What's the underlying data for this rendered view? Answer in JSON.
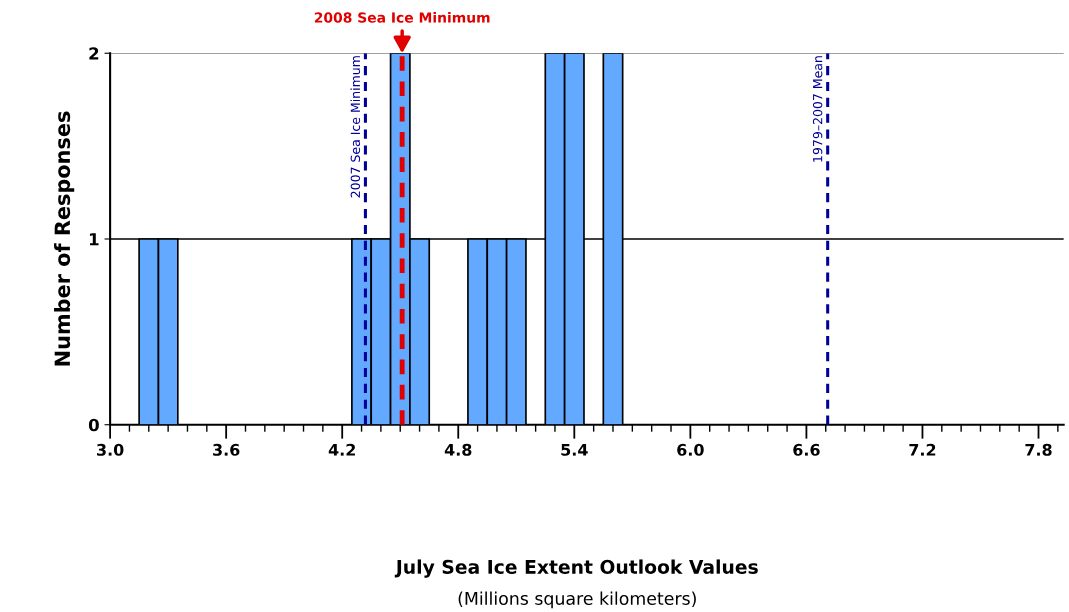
{
  "chart_data": {
    "type": "histogram",
    "ylabel": "Number of Responses",
    "bins": [
      3.15,
      3.25,
      3.35,
      3.45,
      3.55,
      3.65,
      3.75,
      3.85,
      3.95,
      4.05,
      4.15,
      4.25,
      4.35,
      4.45,
      4.55,
      4.65,
      4.75,
      4.85,
      4.95,
      5.05,
      5.15,
      5.25,
      5.35,
      5.45,
      5.55,
      5.65
    ],
    "values": [
      1,
      1,
      0,
      0,
      0,
      0,
      0,
      0,
      0,
      0,
      0,
      1,
      1,
      2,
      1,
      0,
      0,
      1,
      1,
      1,
      0,
      2,
      2,
      0,
      2
    ],
    "color": "#62a9ff",
    "xlim": [
      3.0,
      7.93
    ],
    "xticks": [
      {
        "value": 3.0,
        "label": "3.0"
      },
      {
        "value": 3.1,
        "label": null
      },
      {
        "value": 3.2,
        "label": null
      },
      {
        "value": 3.3,
        "label": null
      },
      {
        "value": 3.4,
        "label": null
      },
      {
        "value": 3.5,
        "label": null
      },
      3.6,
      {
        "value": 3.7,
        "label": null
      },
      {
        "value": 3.8,
        "label": null
      },
      {
        "value": 3.9,
        "label": null
      },
      {
        "value": 4.0,
        "label": null
      },
      {
        "value": 4.1,
        "label": null
      },
      4.2,
      {
        "value": 4.3,
        "label": null
      },
      {
        "value": 4.4,
        "label": null
      },
      {
        "value": 4.5,
        "label": null
      },
      {
        "value": 4.6,
        "label": null
      },
      {
        "value": 4.7,
        "label": null
      },
      4.8,
      {
        "value": 4.9,
        "label": null
      },
      {
        "value": 5.0,
        "label": null
      },
      {
        "value": 5.1,
        "label": null
      },
      {
        "value": 5.2,
        "label": null
      },
      {
        "value": 5.3,
        "label": null
      },
      5.4,
      {
        "value": 5.5,
        "label": null
      },
      {
        "value": 5.6,
        "label": null
      },
      {
        "value": 5.7,
        "label": null
      },
      {
        "value": 5.8,
        "label": null
      },
      {
        "value": 5.9,
        "label": null
      },
      {
        "value": 6.0,
        "label": "6.0"
      },
      {
        "value": 6.1,
        "label": null
      },
      {
        "value": 6.2,
        "label": null
      },
      {
        "value": 6.3,
        "label": null
      },
      {
        "value": 6.4,
        "label": null
      },
      {
        "value": 6.5,
        "label": null
      },
      6.6,
      {
        "value": 6.7,
        "label": null
      },
      {
        "value": 6.8,
        "label": null
      },
      {
        "value": 6.9,
        "label": null
      },
      {
        "value": 7.0,
        "label": null
      },
      {
        "value": 7.1,
        "label": null
      },
      7.2,
      {
        "value": 7.3,
        "label": null
      },
      {
        "value": 7.4,
        "label": null
      },
      {
        "value": 7.5,
        "label": null
      },
      {
        "value": 7.6,
        "label": null
      },
      {
        "value": 7.7,
        "label": null
      },
      7.8,
      {
        "value": 7.9,
        "label": null
      }
    ],
    "ylim": [
      0,
      2
    ],
    "yticks": [
      0,
      1,
      2
    ],
    "ref_lines": [
      {
        "axis": "y",
        "value": 1,
        "color": "#000000",
        "line_style": "solid"
      },
      {
        "axis": "y",
        "value": 2,
        "color": "#808080",
        "line_style": "solid"
      },
      {
        "axis": "x",
        "value": 4.32,
        "label": "2007 Sea Ice Minimum",
        "color": "#000099",
        "line_style": "dashed"
      },
      {
        "axis": "x",
        "value": 4.51,
        "color": "#e00000",
        "line_style": "dashed"
      },
      {
        "axis": "x",
        "value": 6.71,
        "label": "1979–2007 Mean",
        "color": "#000099",
        "line_style": "dashed"
      }
    ],
    "annotations": [
      {
        "text": "2008 Sea Ice Minimum",
        "x": 4.51,
        "y": 2
      },
      "July Sea Ice Extent Outlook Values",
      "(Millions square kilometers)"
    ]
  }
}
